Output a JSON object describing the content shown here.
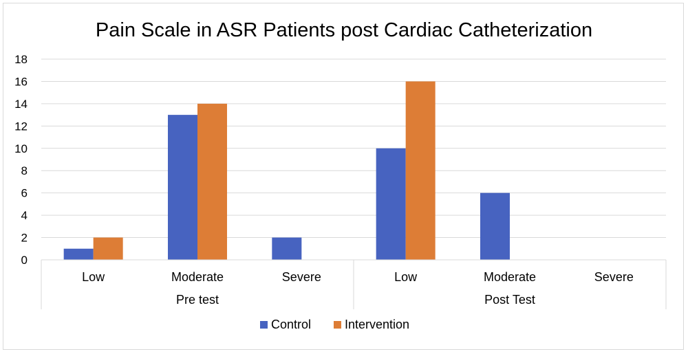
{
  "chart_data": {
    "type": "bar",
    "title": "Pain Scale in ASR Patients post Cardiac Catheterization",
    "xlabel": "",
    "ylabel": "",
    "ylim": [
      0,
      18
    ],
    "yticks": [
      0,
      2,
      4,
      6,
      8,
      10,
      12,
      14,
      16,
      18
    ],
    "grid": true,
    "legend_position": "bottom",
    "groups": [
      {
        "label": "Pre test",
        "categories": [
          "Low",
          "Moderate",
          "Severe"
        ]
      },
      {
        "label": "Post Test",
        "categories": [
          "Low",
          "Moderate",
          "Severe"
        ]
      }
    ],
    "categories": [
      "Low",
      "Moderate",
      "Severe",
      "Low",
      "Moderate",
      "Severe"
    ],
    "series": [
      {
        "name": "Control",
        "color": "#4763c0",
        "values": [
          1,
          13,
          2,
          10,
          6,
          0
        ]
      },
      {
        "name": "Intervention",
        "color": "#dd7d36",
        "values": [
          2,
          14,
          0,
          16,
          0,
          0
        ]
      }
    ]
  }
}
